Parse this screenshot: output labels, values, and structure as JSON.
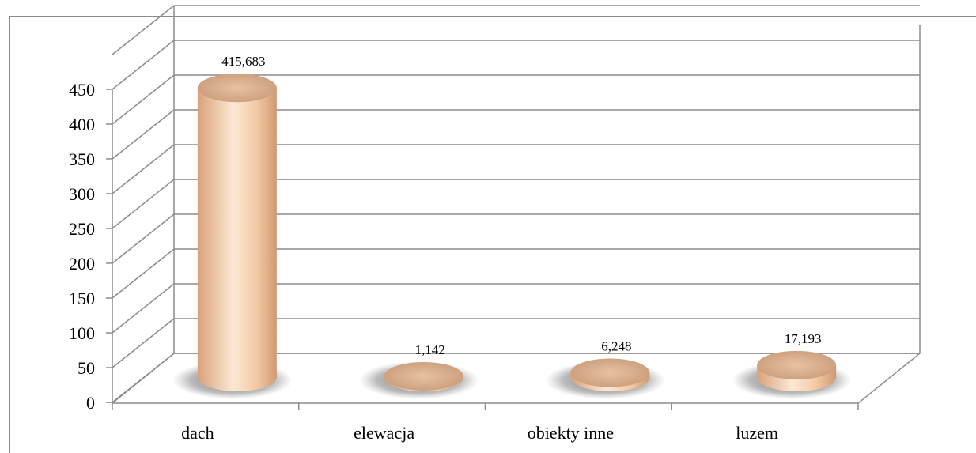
{
  "chart_data": {
    "type": "bar",
    "categories": [
      "dach",
      "elewacja",
      "obiekty inne",
      "luzem"
    ],
    "values": [
      415.683,
      1.142,
      6.248,
      17.193
    ],
    "data_labels": [
      "415,683",
      "1,142",
      "6,248",
      "17,193"
    ],
    "yticks": [
      "0",
      "50",
      "100",
      "150",
      "200",
      "250",
      "300",
      "350",
      "400",
      "450"
    ],
    "ylim": [
      0,
      450
    ],
    "grid": true,
    "style": "3d-cylinder",
    "bar_color": "#e8b98e"
  }
}
